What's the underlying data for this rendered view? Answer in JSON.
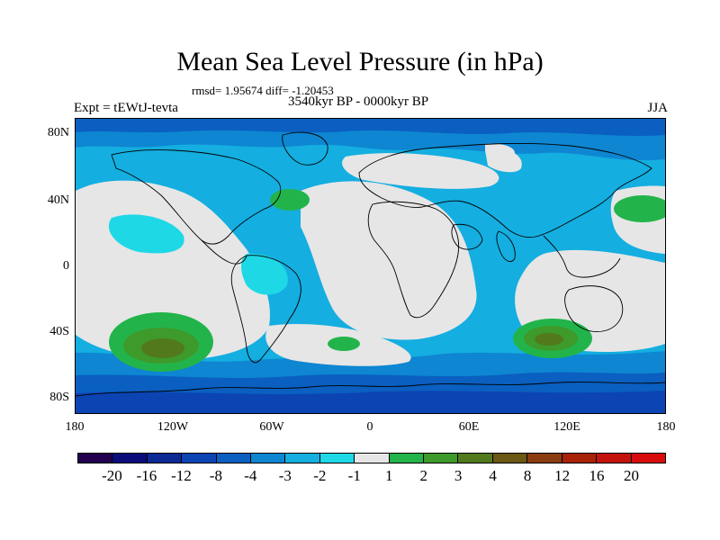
{
  "title": "Mean Sea Level Pressure (in hPa)",
  "stats": "rmsd= 1.95674 diff= -1.20453",
  "period": "3540kyr BP - 0000kyr BP",
  "experiment": "Expt = tEWtJ-tevta",
  "season": "JJA",
  "axes": {
    "y_ticks": [
      "80N",
      "40N",
      "0",
      "40S",
      "80S"
    ],
    "x_ticks": [
      "180",
      "120W",
      "60W",
      "0",
      "60E",
      "120E",
      "180"
    ]
  },
  "colorbar": {
    "colors": [
      "#220050",
      "#0a0c7a",
      "#0b2a96",
      "#0c44b4",
      "#0a5fc0",
      "#0e86d2",
      "#14aee0",
      "#1ed8e6",
      "#e6e6e6",
      "#22b44a",
      "#3e9a2a",
      "#527a1c",
      "#6a5814",
      "#8a3c10",
      "#a82208",
      "#c4120c",
      "#d80c0c"
    ],
    "labels": [
      "-20",
      "-16",
      "-12",
      "-8",
      "-4",
      "-3",
      "-2",
      "-1",
      "1",
      "2",
      "3",
      "4",
      "8",
      "12",
      "16",
      "20"
    ]
  },
  "palette": {
    "ocean_deep": "#0a5fc0",
    "blue_mid": "#0e86d2",
    "light_blue": "#14aee0",
    "cyan": "#1ed8e6",
    "neutral": "#e6e6e6",
    "green": "#22b44a",
    "dark_green": "#3e9a2a",
    "olive": "#527a1c"
  }
}
